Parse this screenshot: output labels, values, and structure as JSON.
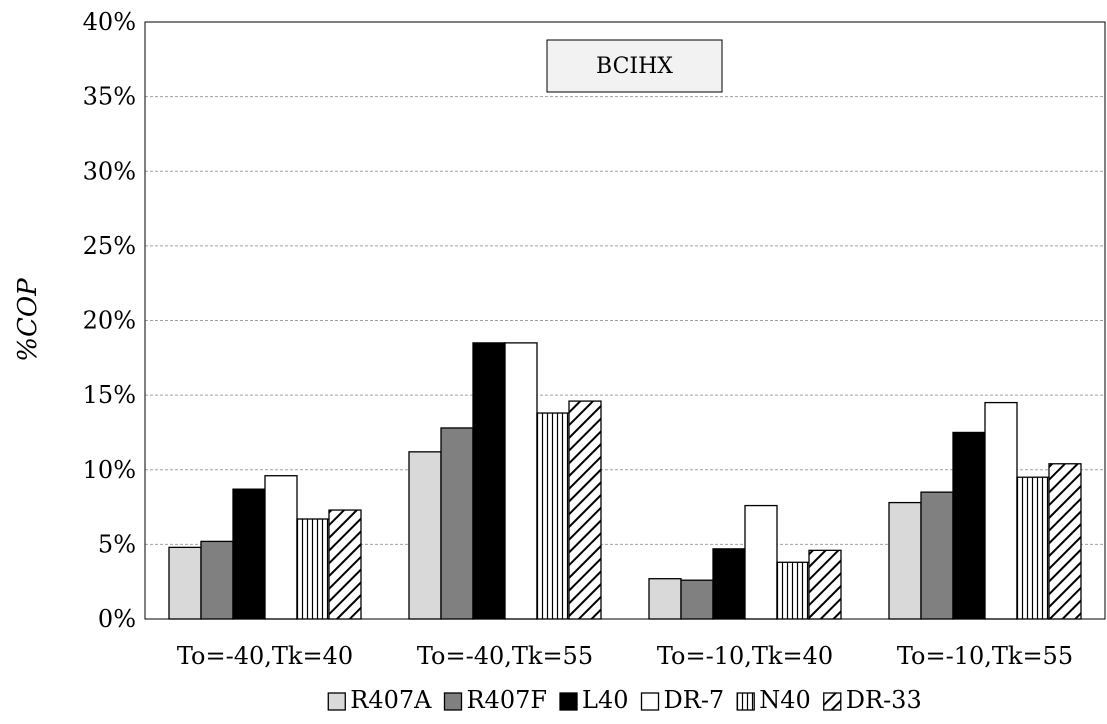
{
  "chart_data": {
    "type": "bar",
    "title": "",
    "annotation": "BCIHX",
    "xlabel": "",
    "ylabel": "%COP",
    "ylim": [
      0,
      40
    ],
    "yticks": [
      0,
      5,
      10,
      15,
      20,
      25,
      30,
      35,
      40
    ],
    "ytick_labels": [
      "0%",
      "5%",
      "10%",
      "15%",
      "20%",
      "25%",
      "30%",
      "35%",
      "40%"
    ],
    "grid": true,
    "legend_position": "bottom",
    "categories": [
      "To=-40,Tk=40",
      "To=-40,Tk=55",
      "To=-10,Tk=40",
      "To=-10,Tk=55"
    ],
    "series": [
      {
        "name": "R407A",
        "values": [
          4.8,
          11.2,
          2.7,
          7.8
        ],
        "fill": "solid",
        "color": "#d9d9d9"
      },
      {
        "name": "R407F",
        "values": [
          5.2,
          12.8,
          2.6,
          8.5
        ],
        "fill": "solid",
        "color": "#808080"
      },
      {
        "name": "L40",
        "values": [
          8.7,
          18.5,
          4.7,
          12.5
        ],
        "fill": "solid",
        "color": "#000000"
      },
      {
        "name": "DR-7",
        "values": [
          9.6,
          18.5,
          7.6,
          14.5
        ],
        "fill": "solid",
        "color": "#ffffff"
      },
      {
        "name": "N40",
        "values": [
          6.7,
          13.8,
          3.8,
          9.5
        ],
        "fill": "vertical-lines",
        "color": "#ffffff"
      },
      {
        "name": "DR-33",
        "values": [
          7.3,
          14.6,
          4.6,
          10.4
        ],
        "fill": "diagonal-lines",
        "color": "#ffffff"
      }
    ]
  }
}
